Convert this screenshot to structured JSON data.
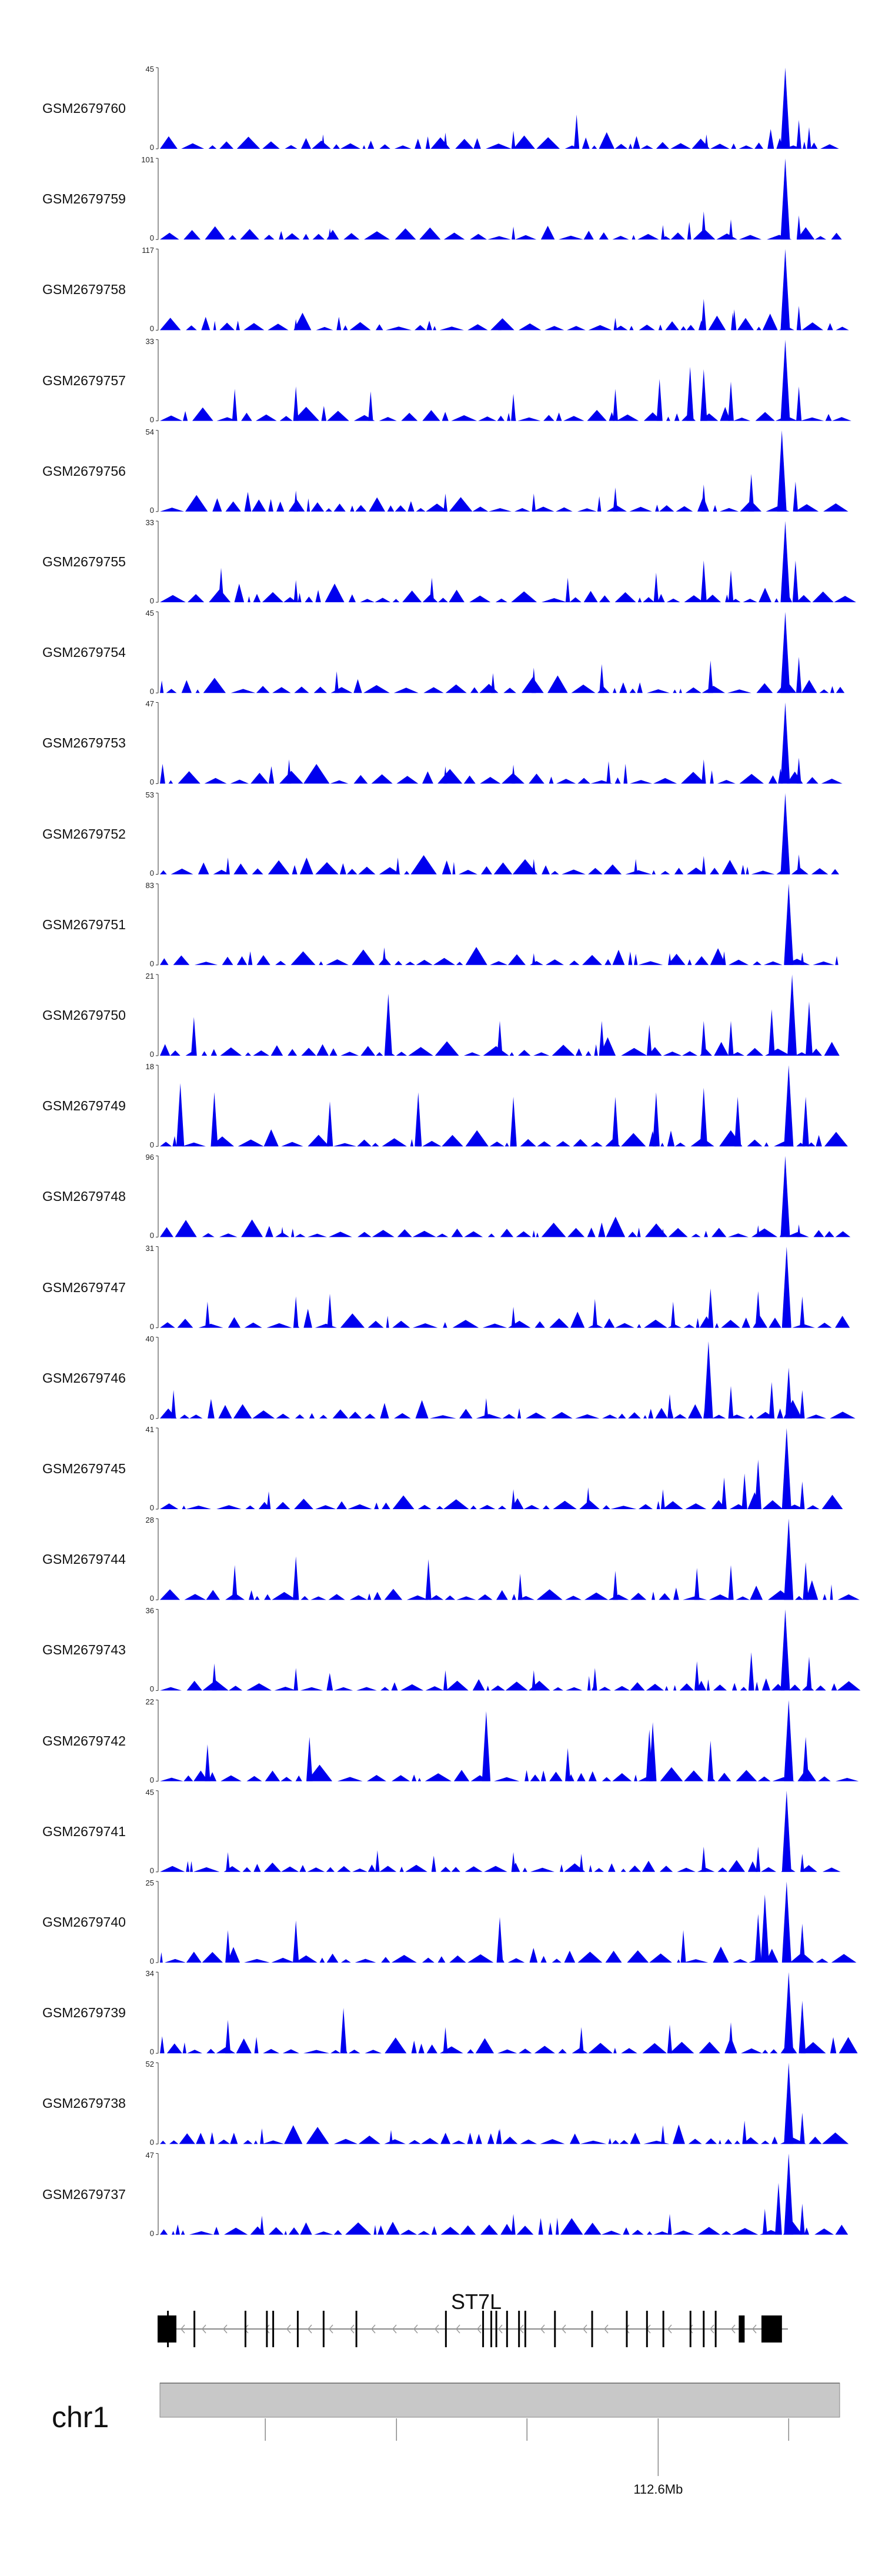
{
  "chart_data": {
    "type": "area",
    "title": "",
    "color": "#0000ee",
    "chromosome": "chr1",
    "position_label": "112.6Mb",
    "gene": {
      "name": "ST7L",
      "strand": "-",
      "exon_positions": [
        0.0,
        0.015,
        0.057,
        0.138,
        0.172,
        0.182,
        0.221,
        0.262,
        0.314,
        0.456,
        0.515,
        0.528,
        0.536,
        0.553,
        0.572,
        0.582,
        0.629,
        0.688,
        0.743,
        0.775,
        0.801,
        0.844,
        0.865,
        0.884,
        0.922,
        0.958,
        0.964,
        0.97
      ]
    },
    "tracks": [
      {
        "name": "GSM2679760",
        "ymax": 45,
        "peaks": [
          [
            0.24,
            8
          ],
          [
            0.42,
            9
          ],
          [
            0.52,
            10
          ],
          [
            0.613,
            19
          ],
          [
            0.804,
            8
          ],
          [
            0.92,
            45
          ],
          [
            0.94,
            16
          ],
          [
            0.955,
            12
          ]
        ]
      },
      {
        "name": "GSM2679759",
        "ymax": 101,
        "peaks": [
          [
            0.25,
            14
          ],
          [
            0.52,
            16
          ],
          [
            0.74,
            18
          ],
          [
            0.8,
            35
          ],
          [
            0.84,
            25
          ],
          [
            0.92,
            101
          ],
          [
            0.94,
            30
          ]
        ]
      },
      {
        "name": "GSM2679758",
        "ymax": 117,
        "peaks": [
          [
            0.2,
            16
          ],
          [
            0.5,
            14
          ],
          [
            0.67,
            18
          ],
          [
            0.8,
            45
          ],
          [
            0.845,
            30
          ],
          [
            0.92,
            117
          ],
          [
            0.94,
            35
          ]
        ]
      },
      {
        "name": "GSM2679757",
        "ymax": 33,
        "peaks": [
          [
            0.11,
            13
          ],
          [
            0.2,
            14
          ],
          [
            0.31,
            12
          ],
          [
            0.52,
            11
          ],
          [
            0.67,
            13
          ],
          [
            0.735,
            17
          ],
          [
            0.78,
            22
          ],
          [
            0.8,
            21
          ],
          [
            0.84,
            16
          ],
          [
            0.92,
            33
          ],
          [
            0.94,
            14
          ]
        ]
      },
      {
        "name": "GSM2679756",
        "ymax": 54,
        "peaks": [
          [
            0.2,
            14
          ],
          [
            0.42,
            12
          ],
          [
            0.55,
            12
          ],
          [
            0.67,
            16
          ],
          [
            0.8,
            18
          ],
          [
            0.87,
            25
          ],
          [
            0.915,
            54
          ],
          [
            0.935,
            20
          ]
        ]
      },
      {
        "name": "GSM2679755",
        "ymax": 33,
        "peaks": [
          [
            0.09,
            14
          ],
          [
            0.2,
            9
          ],
          [
            0.4,
            10
          ],
          [
            0.6,
            10
          ],
          [
            0.73,
            12
          ],
          [
            0.8,
            17
          ],
          [
            0.84,
            13
          ],
          [
            0.92,
            33
          ],
          [
            0.935,
            17
          ]
        ]
      },
      {
        "name": "GSM2679754",
        "ymax": 45,
        "peaks": [
          [
            0.26,
            12
          ],
          [
            0.49,
            11
          ],
          [
            0.55,
            14
          ],
          [
            0.65,
            16
          ],
          [
            0.81,
            18
          ],
          [
            0.92,
            45
          ],
          [
            0.94,
            20
          ]
        ]
      },
      {
        "name": "GSM2679753",
        "ymax": 47,
        "peaks": [
          [
            0.19,
            14
          ],
          [
            0.42,
            10
          ],
          [
            0.52,
            11
          ],
          [
            0.66,
            13
          ],
          [
            0.8,
            14
          ],
          [
            0.92,
            47
          ],
          [
            0.94,
            15
          ]
        ]
      },
      {
        "name": "GSM2679752",
        "ymax": 53,
        "peaks": [
          [
            0.1,
            11
          ],
          [
            0.35,
            11
          ],
          [
            0.55,
            10
          ],
          [
            0.7,
            10
          ],
          [
            0.8,
            12
          ],
          [
            0.92,
            53
          ],
          [
            0.94,
            13
          ]
        ]
      },
      {
        "name": "GSM2679751",
        "ymax": 83,
        "peaks": [
          [
            0.33,
            18
          ],
          [
            0.55,
            12
          ],
          [
            0.75,
            12
          ],
          [
            0.83,
            14
          ],
          [
            0.925,
            83
          ],
          [
            0.945,
            13
          ]
        ]
      },
      {
        "name": "GSM2679750",
        "ymax": 21,
        "peaks": [
          [
            0.05,
            10
          ],
          [
            0.336,
            16
          ],
          [
            0.5,
            9
          ],
          [
            0.65,
            9
          ],
          [
            0.72,
            8
          ],
          [
            0.8,
            9
          ],
          [
            0.84,
            9
          ],
          [
            0.9,
            12
          ],
          [
            0.93,
            21
          ],
          [
            0.955,
            14
          ]
        ]
      },
      {
        "name": "GSM2679749",
        "ymax": 18,
        "peaks": [
          [
            0.03,
            14
          ],
          [
            0.08,
            12
          ],
          [
            0.25,
            10
          ],
          [
            0.38,
            12
          ],
          [
            0.52,
            11
          ],
          [
            0.67,
            11
          ],
          [
            0.73,
            12
          ],
          [
            0.8,
            13
          ],
          [
            0.85,
            11
          ],
          [
            0.925,
            18
          ],
          [
            0.95,
            11
          ]
        ]
      },
      {
        "name": "GSM2679748",
        "ymax": 96,
        "peaks": [
          [
            0.18,
            12
          ],
          [
            0.55,
            8
          ],
          [
            0.74,
            10
          ],
          [
            0.88,
            14
          ],
          [
            0.92,
            96
          ],
          [
            0.94,
            15
          ]
        ]
      },
      {
        "name": "GSM2679747",
        "ymax": 31,
        "peaks": [
          [
            0.07,
            10
          ],
          [
            0.2,
            12
          ],
          [
            0.25,
            13
          ],
          [
            0.52,
            8
          ],
          [
            0.64,
            11
          ],
          [
            0.755,
            10
          ],
          [
            0.81,
            15
          ],
          [
            0.88,
            14
          ],
          [
            0.922,
            31
          ],
          [
            0.945,
            12
          ]
        ]
      },
      {
        "name": "GSM2679746",
        "ymax": 40,
        "peaks": [
          [
            0.02,
            14
          ],
          [
            0.48,
            10
          ],
          [
            0.75,
            12
          ],
          [
            0.807,
            38
          ],
          [
            0.84,
            16
          ],
          [
            0.9,
            18
          ],
          [
            0.925,
            25
          ],
          [
            0.945,
            14
          ]
        ]
      },
      {
        "name": "GSM2679745",
        "ymax": 41,
        "peaks": [
          [
            0.16,
            9
          ],
          [
            0.52,
            10
          ],
          [
            0.63,
            11
          ],
          [
            0.74,
            10
          ],
          [
            0.83,
            16
          ],
          [
            0.86,
            18
          ],
          [
            0.88,
            25
          ],
          [
            0.922,
            41
          ],
          [
            0.945,
            14
          ]
        ]
      },
      {
        "name": "GSM2679744",
        "ymax": 28,
        "peaks": [
          [
            0.11,
            12
          ],
          [
            0.2,
            11
          ],
          [
            0.2,
            15
          ],
          [
            0.395,
            14
          ],
          [
            0.53,
            9
          ],
          [
            0.67,
            10
          ],
          [
            0.79,
            11
          ],
          [
            0.84,
            12
          ],
          [
            0.925,
            28
          ],
          [
            0.95,
            13
          ]
        ]
      },
      {
        "name": "GSM2679743",
        "ymax": 36,
        "peaks": [
          [
            0.08,
            12
          ],
          [
            0.2,
            10
          ],
          [
            0.42,
            9
          ],
          [
            0.55,
            9
          ],
          [
            0.64,
            10
          ],
          [
            0.79,
            13
          ],
          [
            0.87,
            17
          ],
          [
            0.92,
            36
          ],
          [
            0.955,
            15
          ]
        ]
      },
      {
        "name": "GSM2679742",
        "ymax": 22,
        "peaks": [
          [
            0.07,
            10
          ],
          [
            0.22,
            12
          ],
          [
            0.48,
            19
          ],
          [
            0.6,
            9
          ],
          [
            0.72,
            14
          ],
          [
            0.725,
            16
          ],
          [
            0.81,
            11
          ],
          [
            0.925,
            22
          ],
          [
            0.95,
            12
          ]
        ]
      },
      {
        "name": "GSM2679741",
        "ymax": 45,
        "peaks": [
          [
            0.1,
            11
          ],
          [
            0.32,
            12
          ],
          [
            0.52,
            11
          ],
          [
            0.62,
            10
          ],
          [
            0.8,
            14
          ],
          [
            0.88,
            14
          ],
          [
            0.922,
            45
          ],
          [
            0.945,
            10
          ]
        ]
      },
      {
        "name": "GSM2679740",
        "ymax": 25,
        "peaks": [
          [
            0.1,
            10
          ],
          [
            0.2,
            13
          ],
          [
            0.5,
            14
          ],
          [
            0.77,
            10
          ],
          [
            0.88,
            15
          ],
          [
            0.89,
            21
          ],
          [
            0.922,
            25
          ],
          [
            0.945,
            12
          ]
        ]
      },
      {
        "name": "GSM2679739",
        "ymax": 34,
        "peaks": [
          [
            0.1,
            14
          ],
          [
            0.27,
            19
          ],
          [
            0.42,
            11
          ],
          [
            0.62,
            11
          ],
          [
            0.75,
            12
          ],
          [
            0.84,
            13
          ],
          [
            0.925,
            34
          ],
          [
            0.945,
            22
          ]
        ]
      },
      {
        "name": "GSM2679738",
        "ymax": 52,
        "peaks": [
          [
            0.15,
            10
          ],
          [
            0.34,
            9
          ],
          [
            0.5,
            10
          ],
          [
            0.74,
            12
          ],
          [
            0.86,
            15
          ],
          [
            0.925,
            52
          ],
          [
            0.945,
            20
          ]
        ]
      },
      {
        "name": "GSM2679737",
        "ymax": 47,
        "peaks": [
          [
            0.15,
            11
          ],
          [
            0.52,
            12
          ],
          [
            0.75,
            12
          ],
          [
            0.89,
            15
          ],
          [
            0.91,
            30
          ],
          [
            0.925,
            47
          ],
          [
            0.945,
            18
          ]
        ]
      }
    ],
    "genome_axis": {
      "ticks": [
        0.155,
        0.348,
        0.54,
        0.733,
        0.925
      ],
      "labeled_tick": 0.733
    }
  }
}
